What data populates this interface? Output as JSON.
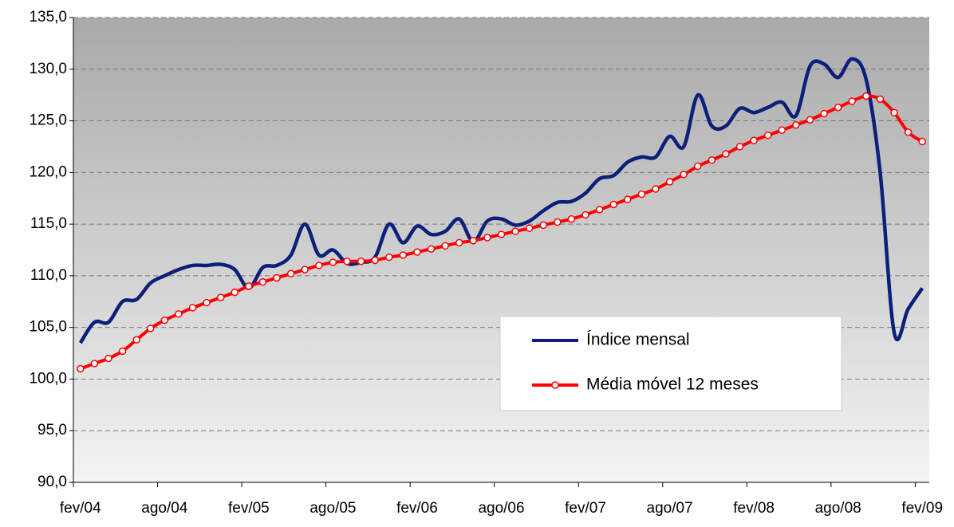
{
  "chart_data": {
    "type": "line",
    "categories": [
      "fev/04",
      null,
      null,
      null,
      null,
      null,
      "ago/04",
      null,
      null,
      null,
      null,
      null,
      "fev/05",
      null,
      null,
      null,
      null,
      null,
      "ago/05",
      null,
      null,
      null,
      null,
      null,
      "fev/06",
      null,
      null,
      null,
      null,
      null,
      "ago/06",
      null,
      null,
      null,
      null,
      null,
      "fev/07",
      null,
      null,
      null,
      null,
      null,
      "ago/07",
      null,
      null,
      null,
      null,
      null,
      "fev/08",
      null,
      null,
      null,
      null,
      null,
      "ago/08",
      null,
      null,
      null,
      null,
      null,
      "fev/09"
    ],
    "series": [
      {
        "name": "Índice mensal",
        "color": "#0c1f7a",
        "values": [
          103.5,
          105.5,
          105.5,
          107.5,
          107.7,
          109.3,
          110.0,
          110.6,
          111.0,
          111.0,
          111.1,
          110.6,
          108.8,
          110.8,
          111.0,
          112.0,
          115.0,
          112.0,
          112.5,
          111.2,
          111.3,
          111.8,
          115.0,
          113.2,
          114.8,
          114.0,
          114.3,
          115.5,
          113.3,
          115.3,
          115.5,
          114.9,
          115.3,
          116.3,
          117.1,
          117.2,
          118.0,
          119.4,
          119.7,
          121.0,
          121.5,
          121.5,
          123.5,
          122.5,
          127.5,
          124.5,
          124.5,
          126.2,
          125.8,
          126.3,
          126.8,
          125.5,
          130.3,
          130.5,
          129.2,
          131.0,
          129.0,
          120.0,
          104.5,
          106.8,
          108.8
        ]
      },
      {
        "name": "Média móvel 12 meses",
        "color": "#ff0000",
        "values": [
          101.0,
          101.5,
          102.0,
          102.7,
          103.8,
          104.9,
          105.7,
          106.3,
          106.9,
          107.4,
          107.9,
          108.4,
          109.0,
          109.4,
          109.8,
          110.2,
          110.6,
          111.0,
          111.3,
          111.4,
          111.4,
          111.5,
          111.8,
          112.0,
          112.3,
          112.6,
          112.9,
          113.2,
          113.4,
          113.7,
          114.0,
          114.3,
          114.6,
          114.9,
          115.2,
          115.5,
          115.9,
          116.4,
          116.9,
          117.4,
          117.9,
          118.4,
          119.1,
          119.8,
          120.6,
          121.2,
          121.8,
          122.5,
          123.1,
          123.6,
          124.1,
          124.6,
          125.1,
          125.7,
          126.3,
          126.9,
          127.4,
          127.1,
          125.8,
          123.9,
          123.0
        ]
      }
    ],
    "ylim": [
      90,
      135
    ],
    "yticks": [
      {
        "value": 90,
        "label": "90,0"
      },
      {
        "value": 95,
        "label": "95,0"
      },
      {
        "value": 100,
        "label": "100,0"
      },
      {
        "value": 105,
        "label": "105,0"
      },
      {
        "value": 110,
        "label": "110,0"
      },
      {
        "value": 115,
        "label": "115,0"
      },
      {
        "value": 120,
        "label": "120,0"
      },
      {
        "value": 125,
        "label": "125,0"
      },
      {
        "value": 130,
        "label": "130,0"
      },
      {
        "value": 135,
        "label": "135,0"
      }
    ],
    "grid": true,
    "legend": "lower right"
  }
}
